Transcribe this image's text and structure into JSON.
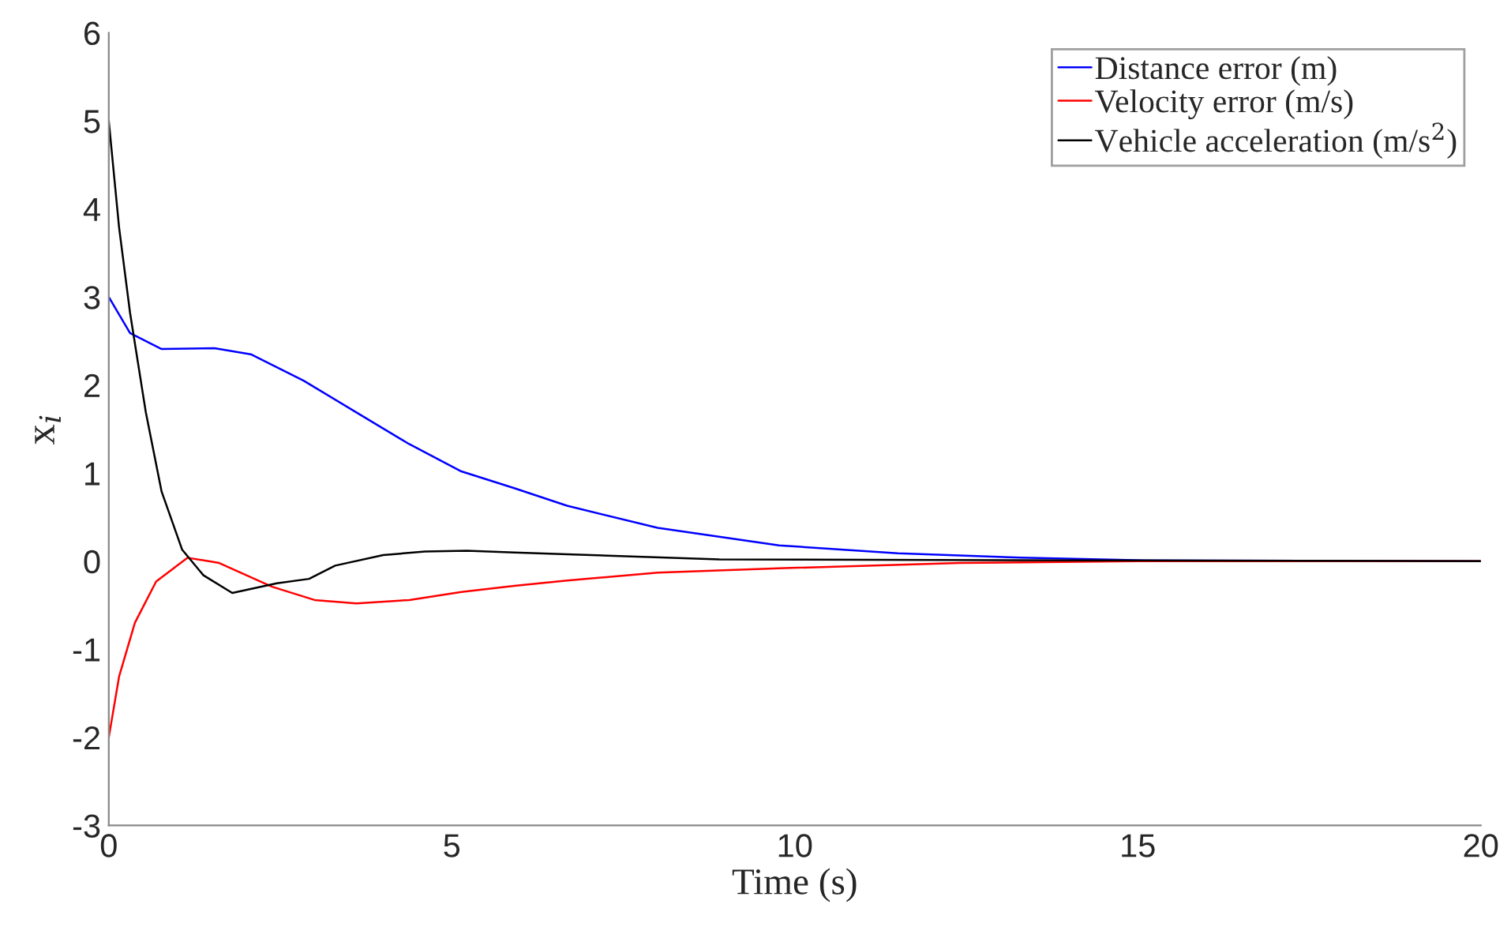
{
  "chart_data": {
    "type": "line",
    "xlabel": "Time (s)",
    "ylabel": "x$_{i}$",
    "xlim": [
      0,
      20
    ],
    "ylim": [
      -3,
      6
    ],
    "xticks": [
      0,
      5,
      10,
      15,
      20
    ],
    "yticks": [
      -3,
      -2,
      -1,
      0,
      1,
      2,
      3,
      4,
      5,
      6
    ],
    "grid": false,
    "legend": "top right",
    "marker": "none",
    "line_style": "solid",
    "series": [
      {
        "name": "Distance error (m)",
        "color": "#0000ff",
        "x": [
          0,
          0.31,
          0.77,
          1.54,
          2.07,
          2.84,
          3.61,
          4.38,
          5.14,
          5.91,
          6.68,
          8.0,
          9.77,
          11.5,
          13.3,
          15.1,
          20
        ],
        "values": [
          3.0,
          2.59,
          2.41,
          2.42,
          2.35,
          2.05,
          1.69,
          1.33,
          1.02,
          0.83,
          0.63,
          0.38,
          0.18,
          0.09,
          0.04,
          0.01,
          0
        ]
      },
      {
        "name": "Velocity error (m/s)",
        "color": "#ff0000",
        "x": [
          0,
          0.15,
          0.38,
          0.69,
          1.15,
          1.61,
          2.38,
          3.0,
          3.61,
          4.38,
          5.14,
          5.91,
          6.68,
          8.0,
          9.77,
          12.4,
          15,
          20
        ],
        "values": [
          -2.0,
          -1.31,
          -0.7,
          -0.23,
          0.04,
          -0.02,
          -0.29,
          -0.44,
          -0.48,
          -0.44,
          -0.35,
          -0.28,
          -0.22,
          -0.13,
          -0.08,
          -0.02,
          0,
          0
        ]
      },
      {
        "name": "Vehicle acceleration (m/s$^{2}$)",
        "color": "#000000",
        "x": [
          0,
          0.15,
          0.31,
          0.54,
          0.77,
          1.07,
          1.38,
          1.8,
          2.45,
          2.92,
          3.3,
          4.0,
          4.61,
          5.22,
          5.91,
          6.68,
          8.9,
          20
        ],
        "values": [
          5.0,
          3.79,
          2.82,
          1.69,
          0.79,
          0.13,
          -0.16,
          -0.36,
          -0.25,
          -0.2,
          -0.05,
          0.07,
          0.11,
          0.12,
          0.1,
          0.08,
          0.02,
          0
        ]
      }
    ]
  }
}
